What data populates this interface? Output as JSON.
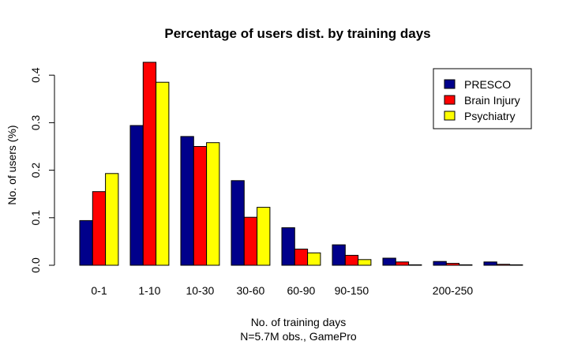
{
  "chart_data": {
    "type": "bar",
    "title": "Percentage of users dist. by training days",
    "xlabel": "No. of training days",
    "xlabel_sub": "N=5.7M obs., GamePro",
    "ylabel": "No. of users (%)",
    "ylim": [
      0,
      0.45
    ],
    "yticks": [
      "0.0",
      "0.1",
      "0.2",
      "0.3",
      "0.4"
    ],
    "ytick_values": [
      0,
      0.1,
      0.2,
      0.3,
      0.4
    ],
    "categories": [
      "0-1",
      "1-10",
      "10-30",
      "30-60",
      "60-90",
      "90-150",
      "",
      "200-250",
      ""
    ],
    "series": [
      {
        "name": "PRESCO",
        "color": "#00008B",
        "values": [
          0.094,
          0.294,
          0.271,
          0.178,
          0.079,
          0.043,
          0.015,
          0.008,
          0.007
        ]
      },
      {
        "name": "Brain Injury",
        "color": "#FF0000",
        "values": [
          0.155,
          0.427,
          0.25,
          0.101,
          0.034,
          0.021,
          0.007,
          0.004,
          0.002
        ]
      },
      {
        "name": "Psychiatry",
        "color": "#FFFF00",
        "values": [
          0.193,
          0.385,
          0.258,
          0.122,
          0.026,
          0.012,
          0.001,
          0.001,
          0.001
        ]
      }
    ],
    "legend_position": "top-right",
    "grid": false
  }
}
